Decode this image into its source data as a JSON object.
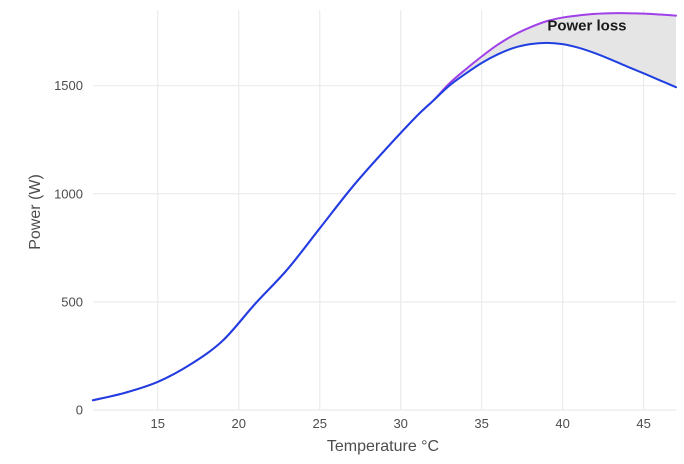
{
  "chart_data": {
    "type": "line",
    "title": "",
    "xlabel": "Temperature °C",
    "ylabel": "Power (W)",
    "xlim": [
      11,
      47
    ],
    "ylim": [
      0,
      1850
    ],
    "x_ticks": [
      15,
      20,
      25,
      30,
      35,
      40,
      45
    ],
    "y_ticks": [
      0,
      500,
      1000,
      1500
    ],
    "grid": true,
    "legend": "none",
    "annotations": [
      {
        "text": "Power loss",
        "x": 41.5,
        "y": 1755
      }
    ],
    "shaded_region": {
      "between": [
        "upper",
        "lower"
      ],
      "fill": "#e5e5e5",
      "x_from": 33,
      "x_to": 47
    },
    "series": [
      {
        "id": "upper",
        "color": "#a040e8",
        "x": [
          11,
          13,
          15,
          17,
          19,
          21,
          23,
          25,
          27,
          29,
          31,
          32,
          33,
          34,
          35,
          36,
          37,
          38,
          39,
          40,
          41,
          42,
          43,
          44,
          45,
          46,
          47
        ],
        "values": [
          45,
          80,
          130,
          210,
          320,
          490,
          650,
          840,
          1030,
          1200,
          1360,
          1430,
          1510,
          1575,
          1635,
          1690,
          1735,
          1770,
          1798,
          1815,
          1825,
          1832,
          1835,
          1835,
          1833,
          1829,
          1824
        ]
      },
      {
        "id": "lower",
        "color": "#1f3fe0",
        "x": [
          11,
          13,
          15,
          17,
          19,
          21,
          23,
          25,
          27,
          29,
          31,
          32,
          33,
          34,
          35,
          36,
          37,
          38,
          39,
          40,
          41,
          42,
          43,
          44,
          45,
          46,
          47
        ],
        "values": [
          45,
          80,
          130,
          210,
          320,
          490,
          650,
          840,
          1030,
          1200,
          1360,
          1430,
          1500,
          1555,
          1605,
          1645,
          1675,
          1692,
          1698,
          1692,
          1675,
          1650,
          1620,
          1588,
          1557,
          1525,
          1493
        ]
      }
    ]
  }
}
